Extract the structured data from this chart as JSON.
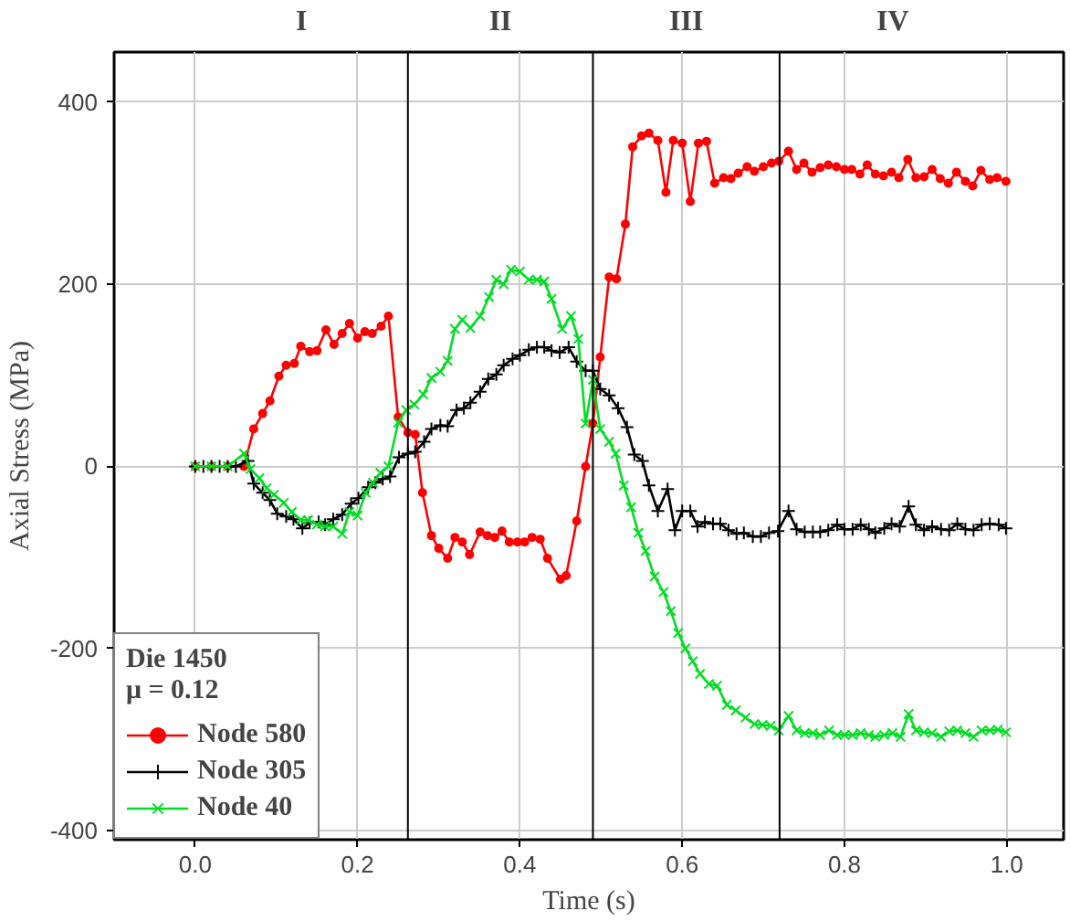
{
  "chart_data": {
    "type": "line",
    "xlabel": "Time (s)",
    "ylabel": "Axial Stress (MPa)",
    "legend_title": "Die 1450\nμ = 0.12",
    "xlim": [
      -0.1,
      1.07
    ],
    "ylim": [
      -410,
      455
    ],
    "xticks": [
      {
        "value": 0.0,
        "label": "0.0"
      },
      {
        "value": 0.2,
        "label": "0.2"
      },
      {
        "value": 0.4,
        "label": "0.4"
      },
      {
        "value": 0.6,
        "label": "0.6"
      },
      {
        "value": 0.8,
        "label": "0.8"
      },
      {
        "value": 1.0,
        "label": "1.0"
      }
    ],
    "yticks": [
      -400,
      -200,
      0,
      200,
      400
    ],
    "grid": true,
    "legend": "bottom left",
    "ref_lines": [
      {
        "axis": "x",
        "value": 0.262,
        "color": "#000000"
      },
      {
        "axis": "x",
        "value": 0.49,
        "color": "#000000"
      },
      {
        "axis": "x",
        "value": 0.72,
        "color": "#000000"
      }
    ],
    "annotations": [
      "I",
      "II",
      "III",
      "IV"
    ],
    "series": [
      {
        "name": "Node 580",
        "color": "#ff0000",
        "marker": "circle",
        "x": [
          0,
          0.02,
          0.04,
          0.06,
          0.072,
          0.083,
          0.092,
          0.103,
          0.112,
          0.122,
          0.13,
          0.141,
          0.15,
          0.161,
          0.171,
          0.181,
          0.19,
          0.2,
          0.209,
          0.218,
          0.229,
          0.238,
          0.25,
          0.262,
          0.271,
          0.28,
          0.291,
          0.3,
          0.311,
          0.32,
          0.329,
          0.338,
          0.351,
          0.36,
          0.369,
          0.378,
          0.387,
          0.397,
          0.406,
          0.415,
          0.425,
          0.434,
          0.45,
          0.457,
          0.47,
          0.481,
          0.49,
          0.499,
          0.51,
          0.519,
          0.53,
          0.539,
          0.55,
          0.559,
          0.57,
          0.58,
          0.589,
          0.6,
          0.61,
          0.62,
          0.63,
          0.64,
          0.651,
          0.66,
          0.669,
          0.68,
          0.689,
          0.7,
          0.71,
          0.719,
          0.731,
          0.741,
          0.75,
          0.76,
          0.77,
          0.78,
          0.79,
          0.8,
          0.809,
          0.819,
          0.828,
          0.838,
          0.848,
          0.858,
          0.867,
          0.878,
          0.888,
          0.898,
          0.908,
          0.918,
          0.928,
          0.938,
          0.949,
          0.958,
          0.968,
          0.979,
          0.988,
          0.999
        ],
        "values": [
          0,
          0,
          0,
          0,
          41,
          58,
          72,
          99,
          111,
          113,
          132,
          126,
          127,
          150,
          134,
          146,
          157,
          141,
          148,
          146,
          154,
          165,
          54,
          37,
          35,
          -29,
          -76,
          -90,
          -101,
          -78,
          -83,
          -97,
          -72,
          -76,
          -78,
          -71,
          -83,
          -83,
          -83,
          -78,
          -80,
          -101,
          -124,
          -120,
          -60,
          0,
          47,
          120,
          208,
          206,
          266,
          351,
          363,
          366,
          358,
          301,
          358,
          355,
          291,
          355,
          357,
          311,
          317,
          316,
          322,
          329,
          324,
          329,
          333,
          335,
          346,
          326,
          333,
          323,
          328,
          331,
          329,
          326,
          326,
          321,
          331,
          321,
          319,
          323,
          317,
          337,
          317,
          318,
          326,
          316,
          311,
          323,
          313,
          308,
          325,
          315,
          317,
          313
        ]
      },
      {
        "name": "Node 305",
        "color": "#000000",
        "marker": "cross",
        "x": [
          0,
          0.01,
          0.02,
          0.03,
          0.04,
          0.05,
          0.065,
          0.072,
          0.083,
          0.092,
          0.101,
          0.112,
          0.121,
          0.132,
          0.141,
          0.152,
          0.16,
          0.17,
          0.181,
          0.192,
          0.201,
          0.213,
          0.222,
          0.231,
          0.24,
          0.251,
          0.262,
          0.271,
          0.282,
          0.291,
          0.302,
          0.311,
          0.322,
          0.331,
          0.339,
          0.351,
          0.361,
          0.371,
          0.38,
          0.391,
          0.4,
          0.411,
          0.421,
          0.43,
          0.439,
          0.449,
          0.46,
          0.47,
          0.481,
          0.49,
          0.499,
          0.51,
          0.521,
          0.532,
          0.541,
          0.551,
          0.559,
          0.57,
          0.582,
          0.591,
          0.6,
          0.61,
          0.619,
          0.628,
          0.638,
          0.647,
          0.657,
          0.667,
          0.676,
          0.687,
          0.697,
          0.707,
          0.718,
          0.731,
          0.741,
          0.751,
          0.761,
          0.77,
          0.78,
          0.791,
          0.8,
          0.81,
          0.82,
          0.83,
          0.838,
          0.849,
          0.858,
          0.868,
          0.879,
          0.888,
          0.898,
          0.908,
          0.919,
          0.929,
          0.939,
          0.949,
          0.959,
          0.969,
          0.979,
          0.99,
          0.999
        ],
        "values": [
          0,
          0,
          0,
          0,
          0,
          0,
          6,
          -19,
          -29,
          -37,
          -52,
          -55,
          -58,
          -68,
          -62,
          -61,
          -64,
          -58,
          -53,
          -41,
          -35,
          -23,
          -18,
          -14,
          -11,
          10,
          14,
          16,
          27,
          41,
          45,
          44,
          62,
          64,
          70,
          82,
          96,
          101,
          111,
          118,
          122,
          128,
          131,
          131,
          127,
          125,
          131,
          115,
          105,
          105,
          85,
          78,
          64,
          43,
          13,
          6,
          -21,
          -49,
          -25,
          -70,
          -49,
          -49,
          -66,
          -61,
          -63,
          -63,
          -70,
          -74,
          -73,
          -77,
          -77,
          -73,
          -71,
          -49,
          -69,
          -72,
          -72,
          -72,
          -70,
          -64,
          -69,
          -69,
          -64,
          -69,
          -73,
          -68,
          -63,
          -66,
          -44,
          -64,
          -70,
          -66,
          -69,
          -70,
          -63,
          -69,
          -70,
          -64,
          -63,
          -64,
          -68
        ]
      },
      {
        "name": "Node 40",
        "color": "#00dd22",
        "marker": "x",
        "x": [
          0,
          0.02,
          0.04,
          0.06,
          0.068,
          0.079,
          0.088,
          0.097,
          0.109,
          0.119,
          0.13,
          0.139,
          0.15,
          0.16,
          0.17,
          0.181,
          0.19,
          0.2,
          0.21,
          0.219,
          0.228,
          0.238,
          0.25,
          0.26,
          0.27,
          0.281,
          0.291,
          0.302,
          0.311,
          0.32,
          0.329,
          0.339,
          0.351,
          0.362,
          0.371,
          0.38,
          0.389,
          0.4,
          0.411,
          0.421,
          0.43,
          0.439,
          0.452,
          0.463,
          0.472,
          0.481,
          0.49,
          0.499,
          0.51,
          0.518,
          0.528,
          0.537,
          0.546,
          0.555,
          0.566,
          0.577,
          0.586,
          0.595,
          0.604,
          0.613,
          0.622,
          0.633,
          0.643,
          0.655,
          0.666,
          0.678,
          0.689,
          0.699,
          0.709,
          0.719,
          0.731,
          0.741,
          0.751,
          0.761,
          0.77,
          0.781,
          0.791,
          0.8,
          0.81,
          0.82,
          0.83,
          0.838,
          0.849,
          0.859,
          0.869,
          0.879,
          0.888,
          0.898,
          0.908,
          0.919,
          0.929,
          0.939,
          0.949,
          0.959,
          0.969,
          0.979,
          0.989,
          0.999
        ],
        "values": [
          0,
          0,
          0,
          14,
          -3,
          -13,
          -24,
          -31,
          -40,
          -50,
          -59,
          -59,
          -64,
          -66,
          -66,
          -74,
          -50,
          -54,
          -29,
          -18,
          -7,
          0,
          48,
          62,
          68,
          79,
          97,
          104,
          116,
          151,
          161,
          152,
          165,
          186,
          205,
          200,
          216,
          214,
          205,
          205,
          203,
          184,
          151,
          165,
          140,
          47,
          95,
          41,
          27,
          14,
          -21,
          -45,
          -73,
          -93,
          -121,
          -138,
          -159,
          -183,
          -200,
          -214,
          -228,
          -239,
          -241,
          -262,
          -268,
          -276,
          -283,
          -284,
          -285,
          -290,
          -274,
          -290,
          -293,
          -293,
          -295,
          -290,
          -295,
          -295,
          -295,
          -293,
          -295,
          -297,
          -295,
          -293,
          -297,
          -272,
          -290,
          -292,
          -293,
          -297,
          -291,
          -290,
          -293,
          -297,
          -290,
          -290,
          -289,
          -292
        ]
      }
    ]
  }
}
